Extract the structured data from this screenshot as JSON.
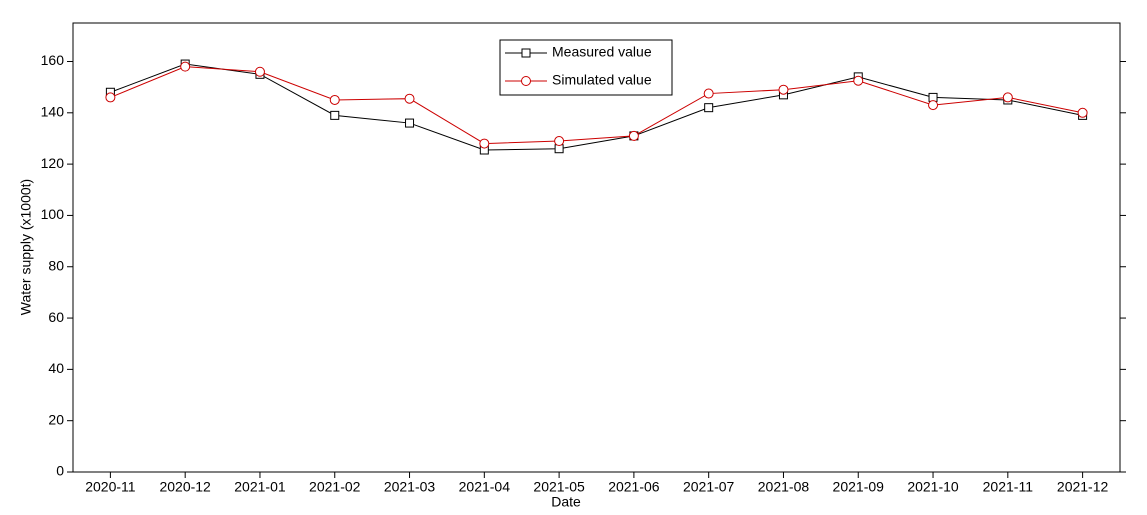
{
  "chart_data": {
    "type": "line",
    "x_label": "Date",
    "y_label": "Water supply  (x1000t)",
    "categories": [
      "2020-11",
      "2020-12",
      "2021-01",
      "2021-02",
      "2021-03",
      "2021-04",
      "2021-05",
      "2021-06",
      "2021-07",
      "2021-08",
      "2021-09",
      "2021-10",
      "2021-11",
      "2021-12"
    ],
    "series": [
      {
        "name": "Measured value",
        "color": "#000000",
        "marker": "square",
        "values": [
          148,
          159,
          155,
          139,
          136,
          125.5,
          126,
          131,
          142,
          147,
          154,
          146,
          145,
          139
        ]
      },
      {
        "name": "Simulated value",
        "color": "#cc0000",
        "marker": "circle",
        "values": [
          146,
          158,
          156,
          145,
          145.5,
          128,
          129,
          131,
          147.5,
          149,
          152.5,
          143,
          146,
          140
        ]
      }
    ],
    "ylim": [
      0,
      175
    ],
    "yticks": [
      0,
      20,
      40,
      60,
      80,
      100,
      120,
      140,
      160
    ],
    "grid": false,
    "legend": "top-center"
  }
}
